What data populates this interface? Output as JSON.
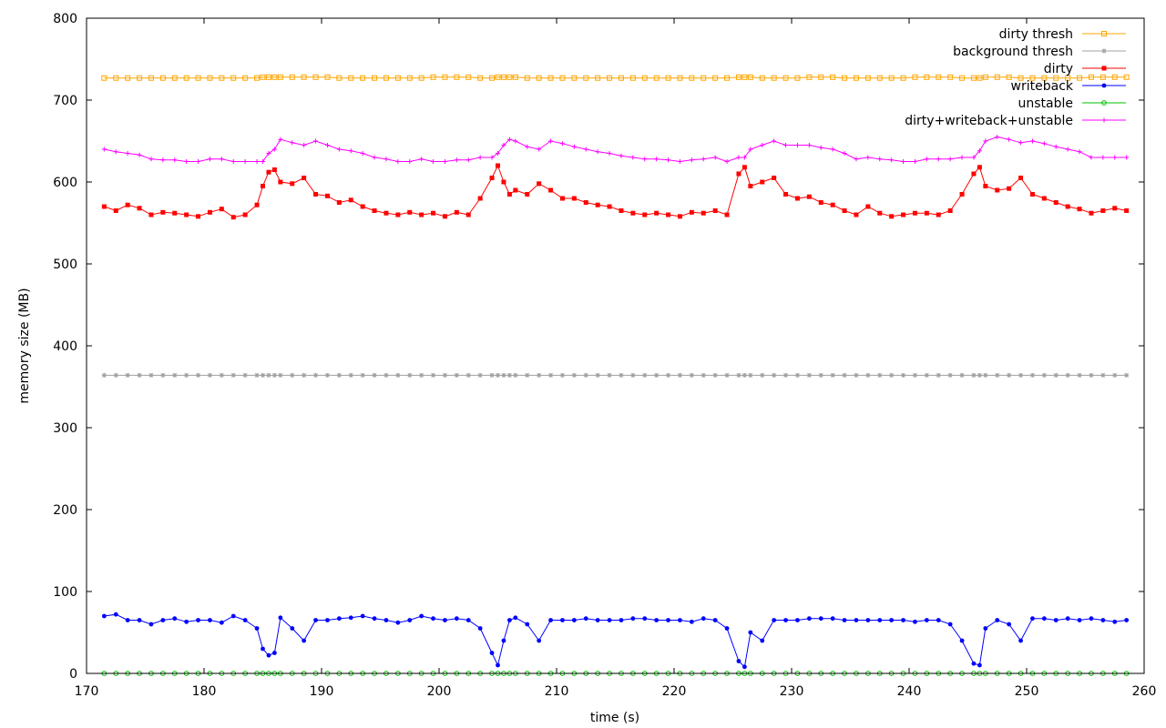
{
  "chart_data": {
    "type": "line",
    "title": "",
    "xlabel": "time (s)",
    "ylabel": "memory size (MB)",
    "xlim": [
      170,
      260
    ],
    "ylim": [
      0,
      800
    ],
    "x_ticks": [
      170,
      180,
      190,
      200,
      210,
      220,
      230,
      240,
      250,
      260
    ],
    "y_ticks": [
      0,
      100,
      200,
      300,
      400,
      500,
      600,
      700,
      800
    ],
    "grid": false,
    "legend_position": "top-right",
    "x": [
      171.5,
      172.5,
      173.5,
      174.5,
      175.5,
      176.5,
      177.5,
      178.5,
      179.5,
      180.5,
      181.5,
      182.5,
      183.5,
      184.5,
      185.0,
      185.5,
      186.0,
      186.5,
      187.5,
      188.5,
      189.5,
      190.5,
      191.5,
      192.5,
      193.5,
      194.5,
      195.5,
      196.5,
      197.5,
      198.5,
      199.5,
      200.5,
      201.5,
      202.5,
      203.5,
      204.5,
      205.0,
      205.5,
      206.0,
      206.5,
      207.5,
      208.5,
      209.5,
      210.5,
      211.5,
      212.5,
      213.5,
      214.5,
      215.5,
      216.5,
      217.5,
      218.5,
      219.5,
      220.5,
      221.5,
      222.5,
      223.5,
      224.5,
      225.5,
      226.0,
      226.5,
      227.5,
      228.5,
      229.5,
      230.5,
      231.5,
      232.5,
      233.5,
      234.5,
      235.5,
      236.5,
      237.5,
      238.5,
      239.5,
      240.5,
      241.5,
      242.5,
      243.5,
      244.5,
      245.5,
      246.0,
      246.5,
      247.5,
      248.5,
      249.5,
      250.5,
      251.5,
      252.5,
      253.5,
      254.5,
      255.5,
      256.5,
      257.5,
      258.5
    ],
    "series": [
      {
        "name": "dirty thresh",
        "color": "#ffa500",
        "marker": "square-open",
        "values": [
          727,
          727,
          727,
          727,
          727,
          727,
          727,
          727,
          727,
          727,
          727,
          727,
          727,
          727,
          728,
          728,
          728,
          728,
          728,
          728,
          728,
          728,
          727,
          727,
          727,
          727,
          727,
          727,
          727,
          727,
          728,
          728,
          728,
          728,
          727,
          727,
          728,
          728,
          728,
          728,
          727,
          727,
          727,
          727,
          727,
          727,
          727,
          727,
          727,
          727,
          727,
          727,
          727,
          727,
          727,
          727,
          727,
          727,
          728,
          728,
          728,
          727,
          727,
          727,
          727,
          728,
          728,
          728,
          727,
          727,
          727,
          727,
          727,
          727,
          728,
          728,
          728,
          728,
          727,
          727,
          727,
          728,
          728,
          728,
          727,
          727,
          727,
          727,
          727,
          727,
          728,
          728,
          728,
          728
        ]
      },
      {
        "name": "background thresh",
        "color": "#a0a0a0",
        "marker": "star",
        "values": [
          364,
          364,
          364,
          364,
          364,
          364,
          364,
          364,
          364,
          364,
          364,
          364,
          364,
          364,
          364,
          364,
          364,
          364,
          364,
          364,
          364,
          364,
          364,
          364,
          364,
          364,
          364,
          364,
          364,
          364,
          364,
          364,
          364,
          364,
          364,
          364,
          364,
          364,
          364,
          364,
          364,
          364,
          364,
          364,
          364,
          364,
          364,
          364,
          364,
          364,
          364,
          364,
          364,
          364,
          364,
          364,
          364,
          364,
          364,
          364,
          364,
          364,
          364,
          364,
          364,
          364,
          364,
          364,
          364,
          364,
          364,
          364,
          364,
          364,
          364,
          364,
          364,
          364,
          364,
          364,
          364,
          364,
          364,
          364,
          364,
          364,
          364,
          364,
          364,
          364,
          364,
          364,
          364,
          364
        ]
      },
      {
        "name": "dirty",
        "color": "#ff0000",
        "marker": "square",
        "values": [
          570,
          565,
          572,
          568,
          560,
          563,
          562,
          560,
          558,
          563,
          567,
          557,
          560,
          572,
          595,
          612,
          615,
          600,
          598,
          605,
          585,
          583,
          575,
          578,
          570,
          565,
          562,
          560,
          563,
          560,
          562,
          558,
          563,
          560,
          580,
          605,
          620,
          600,
          585,
          590,
          585,
          598,
          590,
          580,
          580,
          575,
          572,
          570,
          565,
          562,
          560,
          562,
          560,
          558,
          563,
          562,
          565,
          560,
          610,
          618,
          595,
          600,
          605,
          585,
          580,
          582,
          575,
          572,
          565,
          560,
          570,
          562,
          558,
          560,
          562,
          562,
          560,
          565,
          585,
          610,
          618,
          595,
          590,
          592,
          605,
          585,
          580,
          575,
          570,
          567,
          562,
          565,
          568,
          565
        ]
      },
      {
        "name": "writeback",
        "color": "#0000ff",
        "marker": "circle",
        "values": [
          70,
          72,
          65,
          65,
          60,
          65,
          67,
          63,
          65,
          65,
          62,
          70,
          65,
          55,
          30,
          22,
          25,
          68,
          55,
          40,
          65,
          65,
          67,
          68,
          70,
          67,
          65,
          62,
          65,
          70,
          67,
          65,
          67,
          65,
          55,
          25,
          10,
          40,
          65,
          68,
          60,
          40,
          65,
          65,
          65,
          67,
          65,
          65,
          65,
          67,
          67,
          65,
          65,
          65,
          63,
          67,
          65,
          55,
          15,
          8,
          50,
          40,
          65,
          65,
          65,
          67,
          67,
          67,
          65,
          65,
          65,
          65,
          65,
          65,
          63,
          65,
          65,
          60,
          40,
          12,
          10,
          55,
          65,
          60,
          40,
          67,
          67,
          65,
          67,
          65,
          67,
          65,
          63,
          65
        ]
      },
      {
        "name": "unstable",
        "color": "#00c000",
        "marker": "circle-open",
        "values": [
          0,
          0,
          0,
          0,
          0,
          0,
          0,
          0,
          0,
          0,
          0,
          0,
          0,
          0,
          0,
          0,
          0,
          0,
          0,
          0,
          0,
          0,
          0,
          0,
          0,
          0,
          0,
          0,
          0,
          0,
          0,
          0,
          0,
          0,
          0,
          0,
          0,
          0,
          0,
          0,
          0,
          0,
          0,
          0,
          0,
          0,
          0,
          0,
          0,
          0,
          0,
          0,
          0,
          0,
          0,
          0,
          0,
          0,
          0,
          0,
          0,
          0,
          0,
          0,
          0,
          0,
          0,
          0,
          0,
          0,
          0,
          0,
          0,
          0,
          0,
          0,
          0,
          0,
          0,
          0,
          0,
          0,
          0,
          0,
          0,
          0,
          0,
          0,
          0,
          0,
          0,
          0,
          0,
          0
        ]
      },
      {
        "name": "dirty+writeback+unstable",
        "color": "#ff00ff",
        "marker": "plus",
        "values": [
          640,
          637,
          635,
          633,
          628,
          627,
          627,
          625,
          625,
          628,
          628,
          625,
          625,
          625,
          625,
          635,
          640,
          652,
          648,
          645,
          650,
          645,
          640,
          638,
          635,
          630,
          628,
          625,
          625,
          628,
          625,
          625,
          627,
          627,
          630,
          630,
          635,
          645,
          652,
          650,
          643,
          640,
          650,
          647,
          643,
          640,
          637,
          635,
          632,
          630,
          628,
          628,
          627,
          625,
          627,
          628,
          630,
          625,
          630,
          630,
          640,
          645,
          650,
          645,
          645,
          645,
          642,
          640,
          635,
          628,
          630,
          628,
          627,
          625,
          625,
          628,
          628,
          628,
          630,
          630,
          638,
          650,
          655,
          652,
          648,
          650,
          647,
          643,
          640,
          637,
          630,
          630,
          630,
          630
        ]
      }
    ]
  }
}
